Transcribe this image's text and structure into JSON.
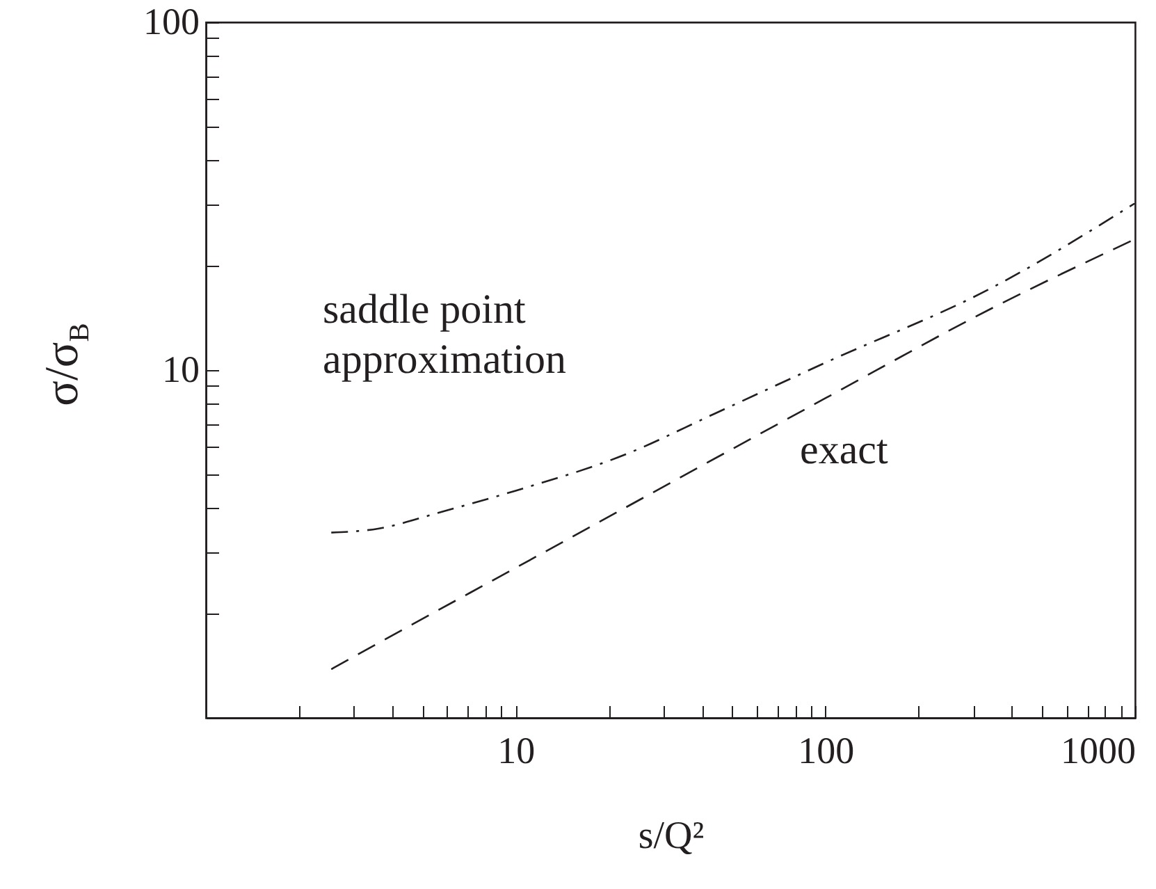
{
  "chart_data": {
    "type": "line",
    "xlabel": "s/Q²",
    "ylabel": "σ/σ$_{B}$",
    "log": "xy",
    "grid": false,
    "xlim": [
      1,
      1000
    ],
    "ylim": [
      1,
      100
    ],
    "xticks": [
      {
        "value": 2,
        "label": null
      },
      {
        "value": 3,
        "label": null
      },
      {
        "value": 4,
        "label": null
      },
      {
        "value": 5,
        "label": null
      },
      {
        "value": 6,
        "label": null
      },
      {
        "value": 7,
        "label": null
      },
      {
        "value": 8,
        "label": null
      },
      {
        "value": 9,
        "label": null
      },
      10,
      {
        "value": 20,
        "label": null
      },
      {
        "value": 30,
        "label": null
      },
      {
        "value": 40,
        "label": null
      },
      {
        "value": 50,
        "label": null
      },
      {
        "value": 60,
        "label": null
      },
      {
        "value": 70,
        "label": null
      },
      {
        "value": 80,
        "label": null
      },
      {
        "value": 90,
        "label": null
      },
      100,
      {
        "value": 200,
        "label": null
      },
      {
        "value": 300,
        "label": null
      },
      {
        "value": 400,
        "label": null
      },
      {
        "value": 500,
        "label": null
      },
      {
        "value": 600,
        "label": null
      },
      {
        "value": 700,
        "label": null
      },
      {
        "value": 800,
        "label": null
      },
      {
        "value": 900,
        "label": null
      },
      1000
    ],
    "yticks": [
      {
        "value": 2,
        "label": null
      },
      {
        "value": 3,
        "label": null
      },
      {
        "value": 4,
        "label": null
      },
      {
        "value": 5,
        "label": null
      },
      {
        "value": 6,
        "label": null
      },
      {
        "value": 7,
        "label": null
      },
      {
        "value": 8,
        "label": null
      },
      {
        "value": 9,
        "label": null
      },
      10,
      {
        "value": 20,
        "label": null
      },
      {
        "value": 30,
        "label": null
      },
      {
        "value": 40,
        "label": null
      },
      {
        "value": 50,
        "label": null
      },
      {
        "value": 60,
        "label": null
      },
      {
        "value": 70,
        "label": null
      },
      {
        "value": 80,
        "label": null
      },
      {
        "value": 90,
        "label": null
      },
      100
    ],
    "series": [
      {
        "color": "#231f20",
        "line_style": "dashdot",
        "x": [
          2.54,
          3.6,
          5.7,
          10,
          22.4,
          44,
          100,
          347,
          1000
        ],
        "values": [
          3.41,
          3.5,
          3.9,
          4.5,
          5.7,
          7.5,
          10.5,
          17.3,
          30.2
        ]
      },
      {
        "color": "#231f20",
        "line_style": "dashed",
        "x": [
          2.54,
          3.6,
          10,
          100,
          347,
          1000
        ],
        "values": [
          1.38,
          1.64,
          2.7,
          8.3,
          15.1,
          23.8
        ]
      }
    ],
    "annotations": [
      "saddle point\napproximation",
      "exact"
    ]
  }
}
